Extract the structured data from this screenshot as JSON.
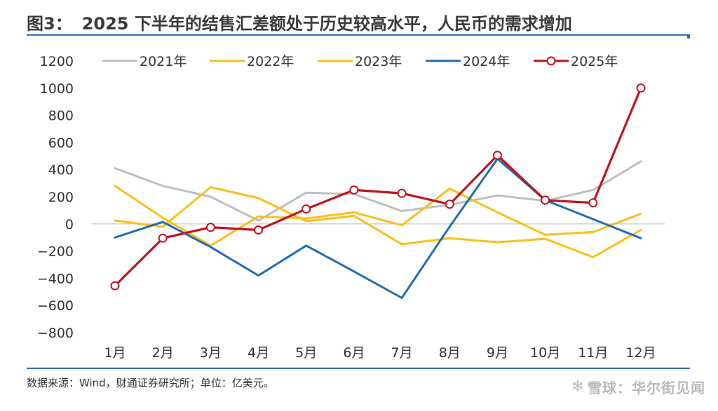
{
  "header": {
    "figure_label": "图3：",
    "title": "2025 下半年的结售汇差额处于历史较高水平，人民币的需求增加"
  },
  "footer": {
    "source": "数据来源：Wind，财通证券研究所；单位：亿美元。",
    "watermark": "雪球：华尔街见闻",
    "watermark_icon": "snowball-icon"
  },
  "chart_data": {
    "type": "line",
    "title": "2025 下半年的结售汇差额处于历史较高水平，人民币的需求增加",
    "xlabel": "",
    "ylabel": "",
    "unit": "亿美元",
    "categories": [
      "1月",
      "2月",
      "3月",
      "4月",
      "5月",
      "6月",
      "7月",
      "8月",
      "9月",
      "10月",
      "11月",
      "12月"
    ],
    "ylim": [
      -800,
      1200
    ],
    "yticks": [
      1200,
      1000,
      800,
      600,
      400,
      200,
      0,
      -200,
      -400,
      -600,
      -800
    ],
    "ytick_labels": [
      "1200",
      "1000",
      "800",
      "600",
      "400",
      "200",
      "0",
      "−200",
      "−400",
      "−600",
      "−800"
    ],
    "grid": false,
    "zero_line": true,
    "legend_position": "top",
    "series": [
      {
        "name": "2021年",
        "color": "#bfbfbf",
        "marker": false,
        "values": [
          410,
          280,
          200,
          25,
          230,
          220,
          95,
          140,
          210,
          170,
          250,
          460
        ]
      },
      {
        "name": "2022年",
        "color": "#fbbf1a",
        "marker": false,
        "values": [
          280,
          45,
          -160,
          55,
          40,
          85,
          -10,
          260,
          85,
          -80,
          -60,
          75
        ]
      },
      {
        "name": "2023年",
        "color": "#fbbf1a",
        "marker": false,
        "values": [
          25,
          -20,
          270,
          190,
          20,
          60,
          -150,
          -105,
          -135,
          -110,
          -245,
          -45
        ]
      },
      {
        "name": "2024年",
        "color": "#1f6eb4",
        "marker": false,
        "values": [
          -100,
          15,
          -170,
          -380,
          -160,
          -350,
          -545,
          -20,
          480,
          175,
          35,
          -105
        ]
      },
      {
        "name": "2025年",
        "color": "#c0141f",
        "marker": true,
        "values": [
          -455,
          -105,
          -25,
          -45,
          110,
          250,
          225,
          145,
          505,
          175,
          155,
          1000
        ]
      }
    ]
  }
}
